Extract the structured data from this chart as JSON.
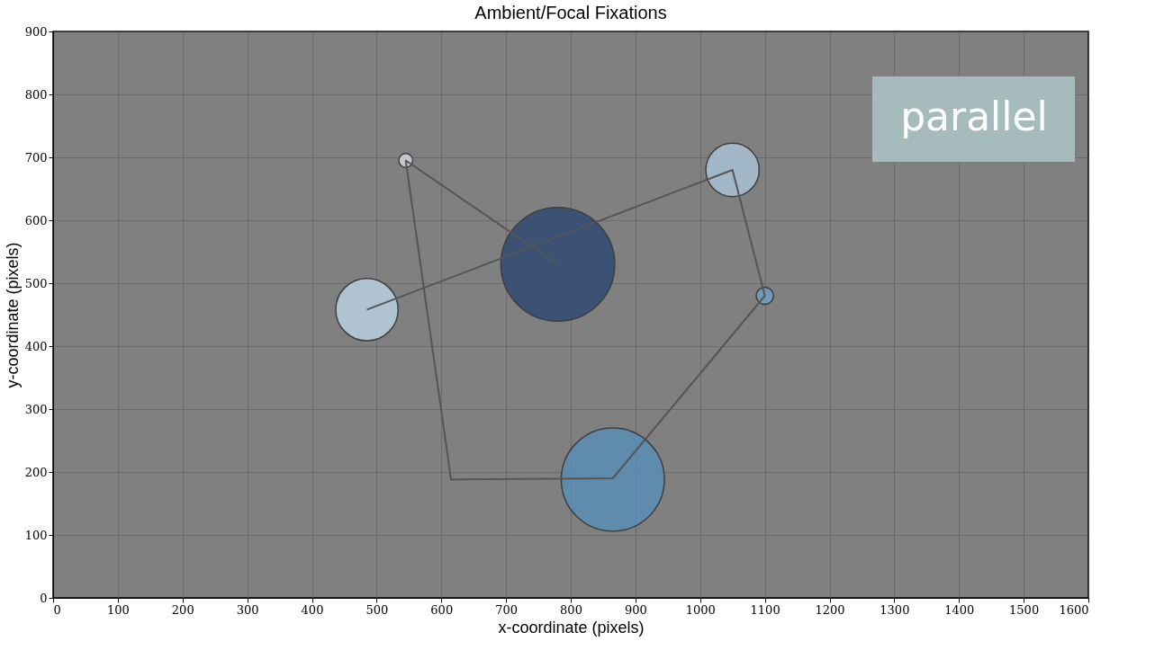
{
  "chart_data": {
    "type": "bubble",
    "title": "Ambient/Focal Fixations",
    "xlabel": "x-coordinate (pixels)",
    "ylabel": "y-coordinate (pixels)",
    "xlim": [
      0,
      1600
    ],
    "xticks": [
      0,
      100,
      200,
      300,
      400,
      500,
      600,
      700,
      800,
      900,
      1000,
      1100,
      1200,
      1300,
      1400,
      1500,
      1600
    ],
    "ylim": [
      0,
      900
    ],
    "yticks": [
      0,
      100,
      200,
      300,
      400,
      500,
      600,
      700,
      800,
      900
    ],
    "grid": true,
    "annotations": [
      "parallel"
    ],
    "series": [
      {
        "x": [
          780,
          545,
          865,
          1100,
          1050,
          485
        ],
        "values": [
          530,
          695,
          188,
          480,
          680,
          458
        ],
        "sizes": [
          1,
          0.015,
          0.82,
          0.023,
          0.22,
          0.3
        ],
        "colors": [
          "#2f4b73",
          "#d0d5dc",
          "#5a8db5",
          "#6f9fc4",
          "#a9c2d6",
          "#b8cfe0"
        ]
      },
      {
        "type": "line",
        "x": [
          780,
          545,
          615,
          865,
          1100,
          1050,
          485
        ],
        "values": [
          530,
          695,
          188,
          190,
          480,
          680,
          458
        ],
        "color": "#555555",
        "marker": "none",
        "line_style": "solid"
      }
    ]
  }
}
